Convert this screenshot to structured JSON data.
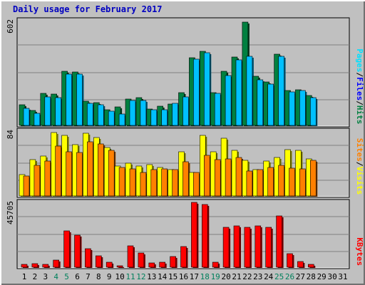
{
  "title": "Daily usage for February 2017",
  "colors": {
    "hits": "#008040",
    "files": "#00c0ff",
    "pages": "#00e0ff",
    "visits": "#ffff00",
    "sites": "#ff8000",
    "kbytes": "#ff0000",
    "weekend_day": "#00805c",
    "weekday": "#000000"
  },
  "chart_data": [
    {
      "type": "bar",
      "panel": "top",
      "categories": [
        "1",
        "2",
        "3",
        "4",
        "5",
        "6",
        "7",
        "8",
        "9",
        "10",
        "11",
        "12",
        "13",
        "14",
        "15",
        "16",
        "17",
        "18",
        "19",
        "20",
        "21",
        "22",
        "23",
        "24",
        "25",
        "26",
        "27",
        "28",
        "29",
        "30",
        "31"
      ],
      "max_label": "602",
      "ylim": [
        0,
        602
      ],
      "legend": [
        {
          "text": "Pages",
          "color": "#00e0ff"
        },
        {
          "text": "/",
          "color": "#000000"
        },
        {
          "text": "Files",
          "color": "#0000ff"
        },
        {
          "text": "/",
          "color": "#000000"
        },
        {
          "text": "Hits",
          "color": "#008040"
        }
      ],
      "series": [
        {
          "name": "Hits",
          "color": "#008040",
          "values": [
            118,
            85,
            185,
            180,
            310,
            308,
            140,
            133,
            92,
            108,
            152,
            158,
            96,
            112,
            124,
            190,
            390,
            425,
            190,
            313,
            392,
            593,
            282,
            250,
            408,
            202,
            205,
            170,
            null,
            null,
            null
          ]
        },
        {
          "name": "Files",
          "color": "#00c0ff",
          "values": [
            100,
            70,
            165,
            160,
            295,
            293,
            128,
            120,
            80,
            65,
            145,
            145,
            90,
            90,
            125,
            165,
            380,
            418,
            185,
            285,
            378,
            397,
            262,
            237,
            398,
            193,
            200,
            158,
            null,
            null,
            null
          ]
        }
      ]
    },
    {
      "type": "bar",
      "panel": "middle",
      "categories": [
        "1",
        "2",
        "3",
        "4",
        "5",
        "6",
        "7",
        "8",
        "9",
        "10",
        "11",
        "12",
        "13",
        "14",
        "15",
        "16",
        "17",
        "18",
        "19",
        "20",
        "21",
        "22",
        "23",
        "24",
        "25",
        "26",
        "27",
        "28",
        "29",
        "30",
        "31"
      ],
      "max_label": "84",
      "ylim": [
        0,
        84
      ],
      "legend": [
        {
          "text": "Sites",
          "color": "#ff8000"
        },
        {
          "text": "/",
          "color": "#000000"
        },
        {
          "text": "Visits",
          "color": "#ffff00"
        }
      ],
      "series": [
        {
          "name": "Visits",
          "color": "#ffff00",
          "values": [
            28,
            47,
            52,
            82,
            78,
            66,
            81,
            76,
            63,
            39,
            42,
            39,
            41,
            37,
            34,
            57,
            30,
            78,
            57,
            75,
            59,
            46,
            34,
            45,
            50,
            60,
            59,
            48,
            null,
            null,
            null
          ]
        },
        {
          "name": "Sites",
          "color": "#ff8000",
          "values": [
            26,
            40,
            45,
            65,
            57,
            56,
            70,
            67,
            59,
            37,
            35,
            30,
            34,
            35,
            34,
            44,
            30,
            53,
            47,
            48,
            50,
            32,
            34,
            37,
            40,
            36,
            35,
            46,
            null,
            null,
            null
          ]
        }
      ]
    },
    {
      "type": "bar",
      "panel": "bottom",
      "categories": [
        "1",
        "2",
        "3",
        "4",
        "5",
        "6",
        "7",
        "8",
        "9",
        "10",
        "11",
        "12",
        "13",
        "14",
        "15",
        "16",
        "17",
        "18",
        "19",
        "20",
        "21",
        "22",
        "23",
        "24",
        "25",
        "26",
        "27",
        "28",
        "29",
        "30",
        "31"
      ],
      "max_label": "45705",
      "ylim": [
        0,
        45705
      ],
      "legend": [
        {
          "text": "KBytes",
          "color": "#ff0000"
        }
      ],
      "series": [
        {
          "name": "KBytes",
          "color": "#ff0000",
          "values": [
            2000,
            2400,
            2000,
            5000,
            25500,
            22500,
            13000,
            8000,
            3500,
            1200,
            15000,
            10000,
            3000,
            3500,
            7500,
            14500,
            45705,
            44000,
            3600,
            28000,
            29000,
            28000,
            29000,
            28000,
            36000,
            9500,
            4000,
            2000,
            null,
            null,
            null
          ]
        }
      ]
    }
  ],
  "x_axis": {
    "labels": [
      "1",
      "2",
      "3",
      "4",
      "5",
      "6",
      "7",
      "8",
      "9",
      "10",
      "11",
      "12",
      "13",
      "14",
      "15",
      "16",
      "17",
      "18",
      "19",
      "20",
      "21",
      "22",
      "23",
      "24",
      "25",
      "26",
      "27",
      "28",
      "29",
      "30",
      "31"
    ],
    "weekend": [
      4,
      5,
      11,
      12,
      18,
      19,
      25,
      26
    ]
  }
}
